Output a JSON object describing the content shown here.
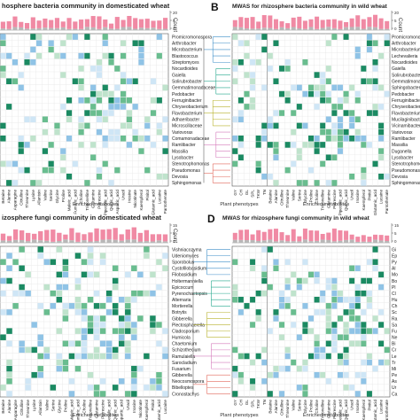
{
  "panels": [
    {
      "letter": "",
      "title": "hosphere bacteria community in domesticated wheat",
      "count_label": "Count",
      "count_ticks": [
        "20",
        "5",
        "0"
      ],
      "taxa": [
        "Promicromonospora",
        "Arthrobacter",
        "Microbacterium",
        "Blastococcus",
        "Streptomyces",
        "Nocardioides",
        "Gaiella",
        "Solirubrobacter",
        "Gemmatimonadaceae",
        "Pedobacter",
        "Ferruginibacter",
        "Chryseobacterium",
        "Flavobacterium",
        "Adhaeribacter",
        "Microscillaceae",
        "Variovorax",
        "Comamonadaceae",
        "Ramlibacter",
        "Massilia",
        "Lysobacter",
        "Stenotrophomonas",
        "Pseudomonas",
        "Devosia",
        "Sphingomonas"
      ],
      "x_group_labels": [
        "Enriched metabolites"
      ],
      "x_tick_labels": [
        "Betaine",
        "Alanine",
        "Asparagine",
        "Citrulline",
        "Threonine",
        "Lysine",
        "Allantoin",
        "Valine",
        "Serine",
        "Glycine",
        "Proline",
        "Maleic_acid",
        "Fumaric_acid",
        "Choline",
        "Trigonelline",
        "Glutamine",
        "Putrescine",
        "Pipecolic_acid",
        "Quinic_acid",
        "Aspartic_acid",
        "Uracil",
        "Inosine",
        "Nicotinate",
        "Kaempferol",
        "Pinitol",
        "Glutamic_acid",
        "Lucaine",
        "Pantothenate"
      ]
    },
    {
      "letter": "B",
      "title": "MWAS for rhizosphere bacteria community in wild wheat",
      "count_label": "Count",
      "count_ticks": [
        "20",
        "5",
        "0"
      ],
      "taxa": [
        "Promicromonospora",
        "Arthrobacter",
        "Microbacterium",
        "Lechevalieria",
        "Nocardioides",
        "Gaiella",
        "Solirubrobacter",
        "Gemmatimonas",
        "Sphingobacterium",
        "Pedobacter",
        "Ferruginibacter",
        "Chryseobacterium",
        "Flavobacterium",
        "Mucilaginibacter",
        "Vicinamibacteraceae",
        "Variovorax",
        "Ramlibacter",
        "Massilia",
        "Duganella",
        "Lysobacter",
        "Stenotrophomonas",
        "Pseudomonas",
        "Devosia",
        "Sphingomonas"
      ],
      "x_group_labels": [
        "Plant phenotypes",
        "Enriched metabolites"
      ],
      "x_tick_labels": [
        "GY",
        "CH",
        "GL",
        "SPL",
        "TKW",
        "TN",
        "Betaine",
        "Alanine",
        "Citrulline",
        "Threonine",
        "Valine",
        "Serine",
        "Glycine",
        "Proline",
        "Choline",
        "Trigonelline",
        "Glutamine",
        "Putrescine",
        "Pipecolic_acid",
        "Quinic_acid",
        "Uracil",
        "Inosine",
        "Kaempferol",
        "Pinitol",
        "Glutamic_acid",
        "Lucaine",
        "Pantothenate"
      ]
    },
    {
      "letter": "",
      "title": "izosphere fungi community in domesticated wheat",
      "count_label": "Count",
      "count_ticks": [
        "15",
        "5",
        "0"
      ],
      "taxa": [
        "Vishniacozyma",
        "Udeniomyces",
        "Sporobolus",
        "Cystofilobasidium",
        "Filobasidium",
        "Holtermanniella",
        "Epicoccum",
        "Pyrenochaetopsis",
        "Alternaria",
        "Mortierella",
        "Botrytis",
        "Gibberella",
        "Plectosphaerella",
        "Cladosporium",
        "Humicola",
        "Chaetomium",
        "Schizothecium",
        "Ramulaiella",
        "Sarocladium",
        "Fusarium",
        "Gibberella",
        "Neocosmospora",
        "Bibelloptes",
        "Cronostachys"
      ],
      "x_group_labels": [
        "Enriched metabolites"
      ],
      "x_tick_labels": [
        "Betaine",
        "Alanine",
        "Asparagine",
        "Citrulline",
        "Threonine",
        "Lysine",
        "Allantoin",
        "Valine",
        "Serine",
        "Glycine",
        "Proline",
        "Maleic_acid",
        "Fumaric_acid",
        "Choline",
        "Trigonelline",
        "Glutamine",
        "Putrescine",
        "Pipecolic_acid",
        "Quinic_acid",
        "Aspartic_acid",
        "Uracil",
        "Inosine",
        "Nicotinate",
        "Kaempferol",
        "Pinitol",
        "Glutamic_acid",
        "Lucaine"
      ]
    },
    {
      "letter": "D",
      "title": "MWAS for rhizosphere fungi community in wild wheat",
      "count_label": "",
      "count_ticks": [
        "15",
        "5",
        "0"
      ],
      "taxa": [
        "Gi",
        "Ep",
        "Py",
        "Al",
        "Mo",
        "Bo",
        "Pl",
        "Cl",
        "Hu",
        "Ch",
        "Sc",
        "Ra",
        "Sa",
        "Fu",
        "Ne",
        "Bi",
        "Cr",
        "Le",
        "Tr",
        "Mi",
        "Pe",
        "As",
        "Ur",
        "Ca"
      ],
      "x_group_labels": [
        "Plant phenotypes",
        "Enriched metabolites"
      ],
      "x_tick_labels": [
        "GY",
        "CH",
        "GL",
        "SPL",
        "TKW",
        "TN",
        "Betaine",
        "Alanine",
        "Citrulline",
        "Threonine",
        "Valine",
        "Serine",
        "Glycine",
        "Proline",
        "Choline",
        "Trigonelline",
        "Glutamine",
        "Putrescine",
        "Pipecolic_acid",
        "Quinic_acid",
        "Uracil",
        "Inosine",
        "Kaempferol",
        "Pinitol",
        "Glutamic_acid",
        "Lucaine",
        "Pantothenate"
      ]
    }
  ],
  "colors": {
    "bar_pink": "#f08aa4",
    "bar_grey": "#b8b8b8",
    "cell_dark_green": "#1b8a62",
    "cell_green": "#69bd8f",
    "cell_light_green": "#bfe3cc",
    "cell_blue": "#8fc3e6",
    "cell_light_blue": "#cfe6f6",
    "grid_line": "#e6e6e6",
    "frame": "#555555",
    "tree_colors": [
      "#3b8dc7",
      "#23a78c",
      "#b7b22a",
      "#d57abb",
      "#e2675a"
    ]
  }
}
